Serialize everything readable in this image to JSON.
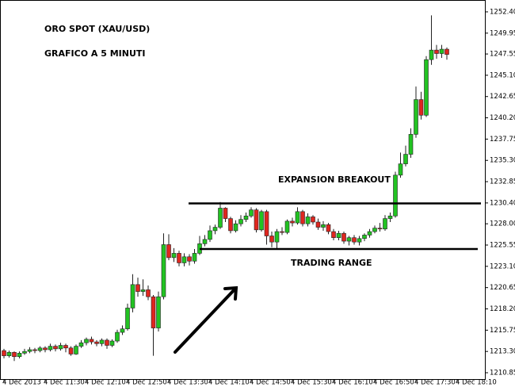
{
  "chart_data": {
    "type": "candlestick",
    "title": "ORO SPOT (XAU/USD)",
    "subtitle": "GRAFICO A 5 MINUTI",
    "annotations": [
      "EXPANSION BREAKOUT",
      "TRADING RANGE"
    ],
    "levels": [
      1230.35,
      1225.1
    ],
    "up_color": "#22c322",
    "down_color": "#e0261f",
    "categories": [
      "4 Dec 2013",
      null,
      null,
      null,
      null,
      null,
      null,
      null,
      "4 Dec 11:30",
      null,
      null,
      null,
      null,
      null,
      null,
      null,
      "4 Dec 12:10",
      null,
      null,
      null,
      null,
      null,
      null,
      null,
      "4 Dec 12:50",
      null,
      null,
      null,
      null,
      null,
      null,
      null,
      "4 Dec 13:30",
      null,
      null,
      null,
      null,
      null,
      null,
      null,
      "4 Dec 14:10",
      null,
      null,
      null,
      null,
      null,
      null,
      null,
      "4 Dec 14:50",
      null,
      null,
      null,
      null,
      null,
      null,
      null,
      "4 Dec 15:30",
      null,
      null,
      null,
      null,
      null,
      null,
      null,
      "4 Dec 16:10",
      null,
      null,
      null,
      null,
      null,
      null,
      null,
      "4 Dec 16:50",
      null,
      null,
      null,
      null,
      null,
      null,
      null,
      "4 Dec 17:30",
      null,
      null,
      null,
      null,
      null,
      null,
      null,
      "4 Dec 18:10"
    ],
    "open": [
      1213.4,
      1212.8,
      1213.2,
      1212.7,
      1213.1,
      1213.3,
      1213.5,
      1213.4,
      1213.7,
      1213.5,
      1213.9,
      1213.6,
      1214.0,
      1213.7,
      1213.0,
      1213.9,
      1214.3,
      1214.7,
      1214.4,
      1214.2,
      1214.6,
      1214.0,
      1214.5,
      1215.5,
      1215.9,
      1218.3,
      1221.0,
      1220.2,
      1220.4,
      1219.6,
      1216.0,
      1219.6,
      1225.6,
      1224.1,
      1224.6,
      1223.5,
      1224.2,
      1223.7,
      1224.6,
      1225.7,
      1226.2,
      1227.2,
      1227.6,
      1229.8,
      1228.6,
      1227.2,
      1228.0,
      1228.5,
      1228.9,
      1229.6,
      1227.3,
      1229.4,
      1226.6,
      1225.9,
      1227.1,
      1227.0,
      1228.3,
      1228.1,
      1229.4,
      1228.0,
      1228.8,
      1228.2,
      1227.6,
      1227.9,
      1227.1,
      1226.4,
      1226.9,
      1226.0,
      1226.4,
      1225.9,
      1226.3,
      1226.7,
      1227.1,
      1227.5,
      1227.4,
      1228.6,
      1228.9,
      1233.6,
      1234.9,
      1236.0,
      1238.3,
      1242.3,
      1240.5,
      1246.9,
      1248.0,
      1247.6,
      1248.1,
      null,
      null
    ],
    "high": [
      1213.6,
      1213.4,
      1213.3,
      1213.3,
      1213.6,
      1213.8,
      1213.7,
      1213.9,
      1213.9,
      1214.2,
      1214.1,
      1214.3,
      1214.2,
      1213.9,
      1214.1,
      1214.6,
      1214.9,
      1215.0,
      1214.6,
      1214.8,
      1214.8,
      1214.7,
      1215.8,
      1216.3,
      1218.8,
      1222.2,
      1221.8,
      1221.6,
      1220.9,
      1219.8,
      1220.2,
      1226.9,
      1226.8,
      1225.2,
      1224.9,
      1224.6,
      1224.5,
      1225.1,
      1226.6,
      1226.7,
      1227.8,
      1227.9,
      1230.5,
      1229.9,
      1228.8,
      1228.4,
      1229.0,
      1229.3,
      1229.9,
      1229.8,
      1229.6,
      1229.6,
      1227.1,
      1227.4,
      1227.6,
      1228.5,
      1228.7,
      1229.9,
      1229.6,
      1229.2,
      1229.0,
      1228.6,
      1228.3,
      1228.1,
      1227.4,
      1227.2,
      1227.1,
      1226.6,
      1226.7,
      1226.6,
      1226.9,
      1227.4,
      1227.8,
      1228.1,
      1229.0,
      1229.3,
      1234.0,
      1236.2,
      1237.0,
      1239.0,
      1243.8,
      1243.2,
      1247.3,
      1252.0,
      1248.6,
      1248.6,
      1248.3,
      null,
      null
    ],
    "low": [
      1212.5,
      1212.6,
      1212.2,
      1212.5,
      1212.9,
      1213.1,
      1213.1,
      1213.2,
      1213.2,
      1213.3,
      1213.3,
      1213.4,
      1213.2,
      1212.8,
      1212.9,
      1213.7,
      1214.0,
      1214.1,
      1213.9,
      1213.9,
      1213.6,
      1213.8,
      1214.3,
      1215.2,
      1215.7,
      1217.8,
      1219.6,
      1219.7,
      1219.2,
      1212.8,
      1215.6,
      1219.3,
      1223.8,
      1223.6,
      1223.1,
      1223.1,
      1223.2,
      1223.4,
      1224.4,
      1225.4,
      1225.9,
      1226.8,
      1227.4,
      1228.2,
      1226.9,
      1227.0,
      1227.7,
      1228.2,
      1228.7,
      1227.0,
      1227.1,
      1225.6,
      1225.3,
      1225.0,
      1226.7,
      1226.8,
      1227.7,
      1227.9,
      1227.7,
      1227.7,
      1227.9,
      1227.3,
      1227.2,
      1226.8,
      1226.1,
      1226.1,
      1225.7,
      1225.5,
      1225.6,
      1225.5,
      1226.0,
      1226.4,
      1226.9,
      1227.1,
      1227.2,
      1228.2,
      1228.7,
      1233.3,
      1234.6,
      1235.6,
      1237.9,
      1240.0,
      1240.3,
      1246.3,
      1247.0,
      1247.1,
      1246.9,
      null,
      null
    ],
    "close": [
      1212.8,
      1213.2,
      1212.7,
      1213.1,
      1213.3,
      1213.5,
      1213.4,
      1213.7,
      1213.5,
      1213.9,
      1213.6,
      1214.0,
      1213.7,
      1213.0,
      1213.9,
      1214.3,
      1214.7,
      1214.4,
      1214.2,
      1214.6,
      1214.0,
      1214.5,
      1215.5,
      1215.9,
      1218.3,
      1221.0,
      1220.2,
      1220.4,
      1219.6,
      1216.0,
      1219.6,
      1225.6,
      1224.1,
      1224.6,
      1223.5,
      1224.2,
      1223.7,
      1224.6,
      1225.7,
      1226.2,
      1227.2,
      1227.6,
      1229.8,
      1228.6,
      1227.2,
      1228.0,
      1228.5,
      1228.9,
      1229.6,
      1227.3,
      1229.4,
      1226.6,
      1225.9,
      1227.1,
      1227.0,
      1228.3,
      1228.1,
      1229.4,
      1228.0,
      1228.8,
      1228.2,
      1227.6,
      1227.9,
      1227.1,
      1226.4,
      1226.9,
      1226.0,
      1226.4,
      1225.9,
      1226.3,
      1226.7,
      1227.1,
      1227.5,
      1227.4,
      1228.6,
      1228.9,
      1233.6,
      1234.9,
      1236.0,
      1238.3,
      1242.3,
      1240.5,
      1246.9,
      1248.0,
      1247.6,
      1248.1,
      1247.5,
      null,
      null
    ],
    "ylim": [
      1210.12,
      1253.4
    ],
    "yticks": [
      {
        "value": 1252.4,
        "label": "1252.40"
      },
      {
        "value": 1249.95,
        "label": "1249.95"
      },
      {
        "value": 1247.55,
        "label": "1247.55"
      },
      {
        "value": 1245.1,
        "label": "1245.10"
      },
      {
        "value": 1242.65,
        "label": "1242.65"
      },
      {
        "value": 1240.2,
        "label": "1240.20"
      },
      {
        "value": 1237.75,
        "label": "1237.75"
      },
      {
        "value": 1235.3,
        "label": "1235.30"
      },
      {
        "value": 1232.85,
        "label": "1232.85"
      },
      {
        "value": 1230.4,
        "label": "1230.40"
      },
      {
        "value": 1228,
        "label": "1228.00"
      },
      {
        "value": 1225.55,
        "label": "1225.55"
      },
      {
        "value": 1223.1,
        "label": "1223.10"
      },
      {
        "value": 1220.65,
        "label": "1220.65"
      },
      {
        "value": 1218.2,
        "label": "1218.20"
      },
      {
        "value": 1215.75,
        "label": "1215.75"
      },
      {
        "value": 1213.3,
        "label": "1213.30"
      },
      {
        "value": 1210.85,
        "label": "1210.85"
      }
    ]
  }
}
